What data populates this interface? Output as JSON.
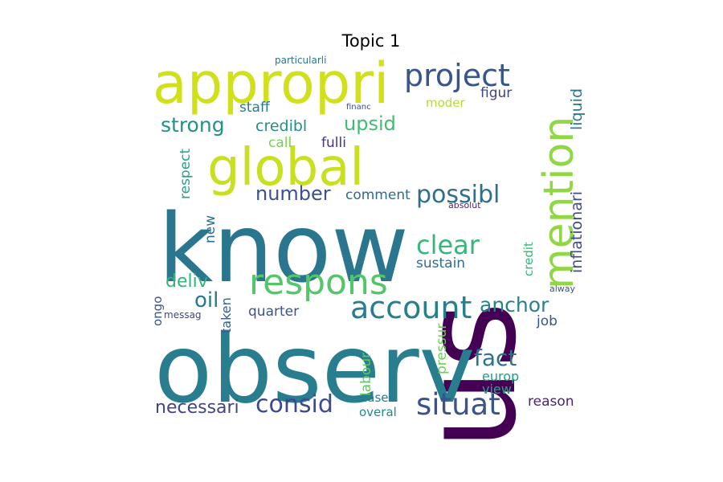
{
  "chart_data": {
    "type": "wordcloud",
    "title": "Topic 1",
    "words": [
      {
        "text": "us",
        "color": "#440154"
      },
      {
        "text": "observ",
        "color": "#287d8e"
      },
      {
        "text": "know",
        "color": "#2a768e"
      },
      {
        "text": "appropri",
        "color": "#d0e11c"
      },
      {
        "text": "mention",
        "color": "#90d743"
      },
      {
        "text": "global",
        "color": "#c8e020"
      },
      {
        "text": "project",
        "color": "#39568c"
      },
      {
        "text": "respons",
        "color": "#54c568"
      },
      {
        "text": "account",
        "color": "#277f8e"
      },
      {
        "text": "situat",
        "color": "#3b528b"
      },
      {
        "text": "possibl",
        "color": "#2d708e"
      },
      {
        "text": "number",
        "color": "#3b528b"
      },
      {
        "text": "clear",
        "color": "#35b779"
      },
      {
        "text": "strong",
        "color": "#21918c"
      },
      {
        "text": "anchor",
        "color": "#26828e"
      },
      {
        "text": "consid",
        "color": "#3e4a89"
      },
      {
        "text": "fact",
        "color": "#2c728e"
      },
      {
        "text": "upsid",
        "color": "#3fbc73"
      },
      {
        "text": "necessari",
        "color": "#414487"
      },
      {
        "text": "oil",
        "color": "#2a788e"
      },
      {
        "text": "deliv",
        "color": "#31b57b"
      },
      {
        "text": "credibl",
        "color": "#21908d"
      },
      {
        "text": "inflationari",
        "color": "#3e4c8a"
      },
      {
        "text": "liquid",
        "color": "#2a788e"
      },
      {
        "text": "sustain",
        "color": "#2f6c8e"
      },
      {
        "text": "comment",
        "color": "#2f6b8e"
      },
      {
        "text": "quarter",
        "color": "#3b528b"
      },
      {
        "text": "staff",
        "color": "#2a788e"
      },
      {
        "text": "fulli",
        "color": "#46337e"
      },
      {
        "text": "call",
        "color": "#7ad151"
      },
      {
        "text": "figur",
        "color": "#414487"
      },
      {
        "text": "moder",
        "color": "#b5de2b"
      },
      {
        "text": "respect",
        "color": "#20a386"
      },
      {
        "text": "new",
        "color": "#2c728e"
      },
      {
        "text": "credit",
        "color": "#35b779"
      },
      {
        "text": "pressur",
        "color": "#6ece58"
      },
      {
        "text": "labour",
        "color": "#5ec962"
      },
      {
        "text": "taken",
        "color": "#355f8d"
      },
      {
        "text": "ongo",
        "color": "#3b528b"
      },
      {
        "text": "messag",
        "color": "#414487"
      },
      {
        "text": "job",
        "color": "#3b528b"
      },
      {
        "text": "europ",
        "color": "#1f9e89"
      },
      {
        "text": "view",
        "color": "#22a884"
      },
      {
        "text": "case",
        "color": "#287c8e"
      },
      {
        "text": "overal",
        "color": "#23898e"
      },
      {
        "text": "reason",
        "color": "#482576"
      },
      {
        "text": "absolut",
        "color": "#482475"
      },
      {
        "text": "alway",
        "color": "#3b528b"
      },
      {
        "text": "financ",
        "color": "#3e4a89"
      },
      {
        "text": "particularli",
        "color": "#2a768e"
      }
    ]
  }
}
